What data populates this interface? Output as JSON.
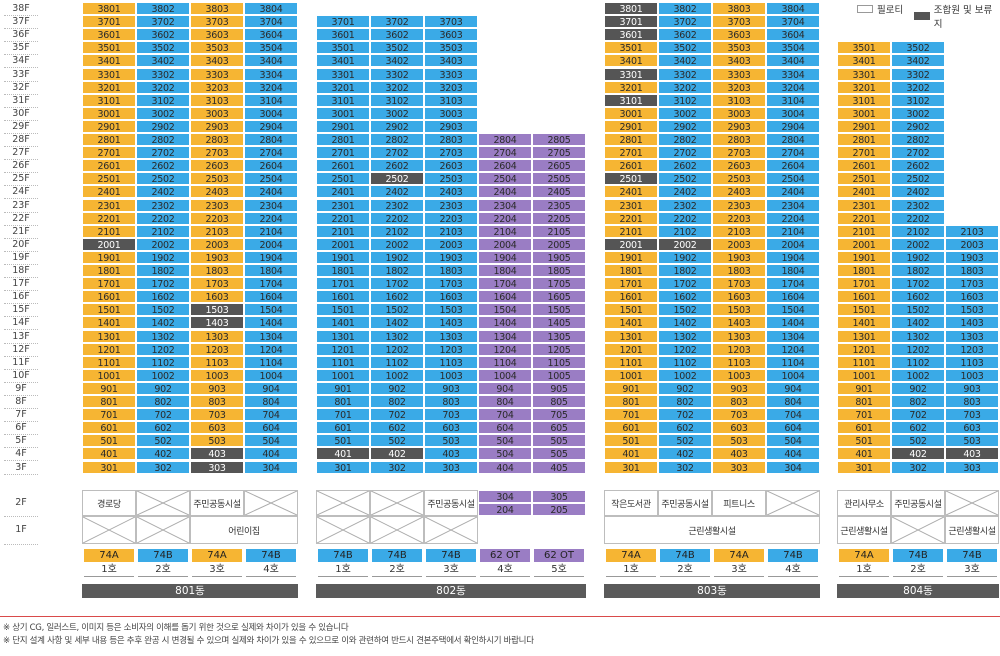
{
  "floors": [
    "38F",
    "37F",
    "36F",
    "35F",
    "34F",
    "33F",
    "32F",
    "31F",
    "30F",
    "29F",
    "28F",
    "27F",
    "26F",
    "25F",
    "24F",
    "23F",
    "22F",
    "21F",
    "20F",
    "19F",
    "18F",
    "17F",
    "16F",
    "15F",
    "14F",
    "13F",
    "12F",
    "11F",
    "10F",
    "9F",
    "8F",
    "7F",
    "6F",
    "5F",
    "4F",
    "3F",
    "2F",
    "1F"
  ],
  "legend": {
    "piloti": "필로티",
    "reserved": "조합원 및 보류지"
  },
  "colors": {
    "orange": "#f6b533",
    "blue": "#3aaae7",
    "purple": "#9a7dc4",
    "dark": "#555555"
  },
  "buildings": [
    {
      "name": "801동",
      "top_floor": 38,
      "columns": [
        {
          "line": 1,
          "type": "74A",
          "ho": "1호",
          "color": "o",
          "dark": [
            "2001"
          ],
          "lo": 3,
          "hi": 38
        },
        {
          "line": 2,
          "type": "74B",
          "ho": "2호",
          "color": "b",
          "dark": [],
          "lo": 3,
          "hi": 38
        },
        {
          "line": 3,
          "type": "74A",
          "ho": "3호",
          "color": "o",
          "dark": [
            "1503",
            "1403",
            "403",
            "303"
          ],
          "lo": 3,
          "hi": 38
        },
        {
          "line": 4,
          "type": "74B",
          "ho": "4호",
          "color": "b",
          "dark": [],
          "lo": 3,
          "hi": 38
        }
      ],
      "f2": [
        {
          "text": "경로당",
          "span": 1
        },
        {
          "text": "",
          "span": 1
        },
        {
          "text": "주민공동시설",
          "span": 1
        },
        {
          "text": "",
          "span": 1
        }
      ],
      "f1": [
        {
          "text": "",
          "span": 1
        },
        {
          "text": "",
          "span": 1
        },
        {
          "text": "어린이집",
          "span": 2
        }
      ]
    },
    {
      "name": "802동",
      "top_floor": 37,
      "columns": [
        {
          "line": 1,
          "type": "74B",
          "ho": "1호",
          "color": "b",
          "dark": [
            "401"
          ],
          "lo": 3,
          "hi": 37
        },
        {
          "line": 2,
          "type": "74B",
          "ho": "2호",
          "color": "b",
          "dark": [
            "2502",
            "402"
          ],
          "lo": 3,
          "hi": 37
        },
        {
          "line": 3,
          "type": "74B",
          "ho": "3호",
          "color": "b",
          "dark": [],
          "lo": 3,
          "hi": 37
        },
        {
          "line": 4,
          "type": "62 OT",
          "ho": "4호",
          "color": "p",
          "dark": [],
          "lo": 2,
          "hi": 28
        },
        {
          "line": 5,
          "type": "62 OT",
          "ho": "5호",
          "color": "p",
          "dark": [],
          "lo": 2,
          "hi": 28
        }
      ],
      "f2": [
        {
          "text": "",
          "span": 1
        },
        {
          "text": "",
          "span": 1
        },
        {
          "text": "주민공동시설",
          "span": 1
        }
      ],
      "f1": [
        {
          "text": "",
          "span": 1
        },
        {
          "text": "",
          "span": 1
        },
        {
          "text": "",
          "span": 1
        }
      ],
      "second_floor_units": [
        "304",
        "305",
        "204",
        "205"
      ]
    },
    {
      "name": "803동",
      "top_floor": 38,
      "columns": [
        {
          "line": 1,
          "type": "74A",
          "ho": "1호",
          "color": "o",
          "dark": [
            "3801",
            "3701",
            "3601",
            "3301",
            "3101",
            "2501",
            "2001"
          ],
          "lo": 3,
          "hi": 38
        },
        {
          "line": 2,
          "type": "74B",
          "ho": "2호",
          "color": "b",
          "dark": [
            "2002"
          ],
          "lo": 3,
          "hi": 38
        },
        {
          "line": 3,
          "type": "74A",
          "ho": "3호",
          "color": "o",
          "dark": [],
          "lo": 3,
          "hi": 38
        },
        {
          "line": 4,
          "type": "74B",
          "ho": "4호",
          "color": "b",
          "dark": [],
          "lo": 3,
          "hi": 38
        }
      ],
      "f2": [
        {
          "text": "작은도서관",
          "span": 1
        },
        {
          "text": "주민공동시설",
          "span": 1
        },
        {
          "text": "피트니스",
          "span": 1
        },
        {
          "text": "",
          "span": 1
        }
      ],
      "f1": [
        {
          "text": "근린생활시설",
          "span": 4
        }
      ]
    },
    {
      "name": "804동",
      "top_floor": 35,
      "columns": [
        {
          "line": 1,
          "type": "74A",
          "ho": "1호",
          "color": "o",
          "dark": [],
          "lo": 3,
          "hi": 35
        },
        {
          "line": 2,
          "type": "74B",
          "ho": "2호",
          "color": "b",
          "dark": [
            "402"
          ],
          "lo": 3,
          "hi": 35
        },
        {
          "line": 3,
          "type": "74B",
          "ho": "3호",
          "color": "b",
          "dark": [
            "403"
          ],
          "lo": 3,
          "hi": 21
        }
      ],
      "f2": [
        {
          "text": "관리사무소",
          "span": 1
        },
        {
          "text": "주민공동시설",
          "span": 1
        },
        {
          "text": "",
          "span": 1
        }
      ],
      "f1": [
        {
          "text": "근린생활시설",
          "span": 1
        },
        {
          "text": "",
          "span": 1
        },
        {
          "text": "근린생활시설",
          "span": 1
        }
      ]
    }
  ],
  "notes": [
    "※ 상기 CG, 일러스트, 이미지 등은 소비자의 이해를 돕기 위한 것으로 실제와 차이가 있을 수 있습니다",
    "※ 단지 설계 사항 및 세부 내용 등은 추후 완공 시 변경될 수 있으며 실제와 차이가 있을 수 있으므로 이와 관련하여 반드시 견본주택에서 확인하시기 바랍니다"
  ]
}
